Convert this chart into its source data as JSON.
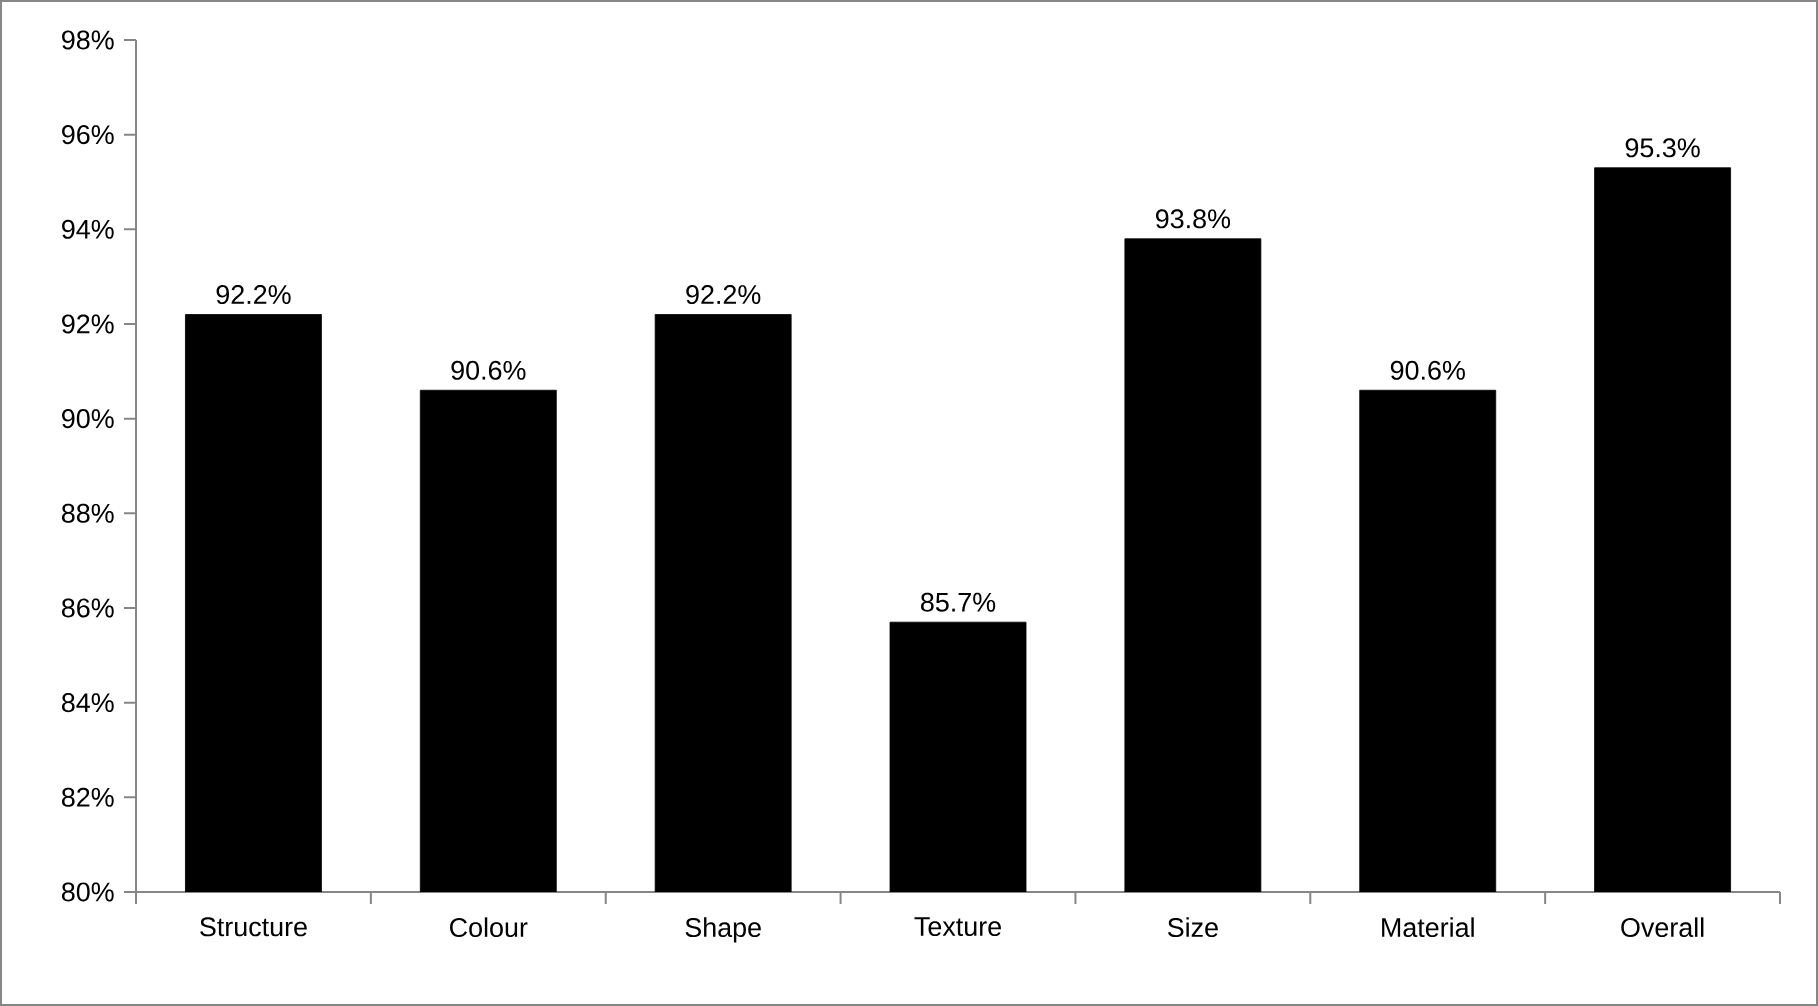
{
  "chart_data": {
    "type": "bar",
    "categories": [
      "Structure",
      "Colour",
      "Shape",
      "Texture",
      "Size",
      "Material",
      "Overall"
    ],
    "values": [
      92.2,
      90.6,
      92.2,
      85.7,
      93.8,
      90.6,
      95.3
    ],
    "value_labels": [
      "92.2%",
      "90.6%",
      "92.2%",
      "85.7%",
      "93.8%",
      "90.6%",
      "95.3%"
    ],
    "color": "#000000",
    "ylim": [
      80,
      98
    ],
    "yticks": [
      {
        "value": 80,
        "label": "80%"
      },
      {
        "value": 82,
        "label": "82%"
      },
      {
        "value": 84,
        "label": "84%"
      },
      {
        "value": 86,
        "label": "86%"
      },
      {
        "value": 88,
        "label": "88%"
      },
      {
        "value": 90,
        "label": "90%"
      },
      {
        "value": 92,
        "label": "92%"
      },
      {
        "value": 94,
        "label": "94%"
      },
      {
        "value": 96,
        "label": "96%"
      },
      {
        "value": 98,
        "label": "98%"
      }
    ],
    "grid": false
  }
}
